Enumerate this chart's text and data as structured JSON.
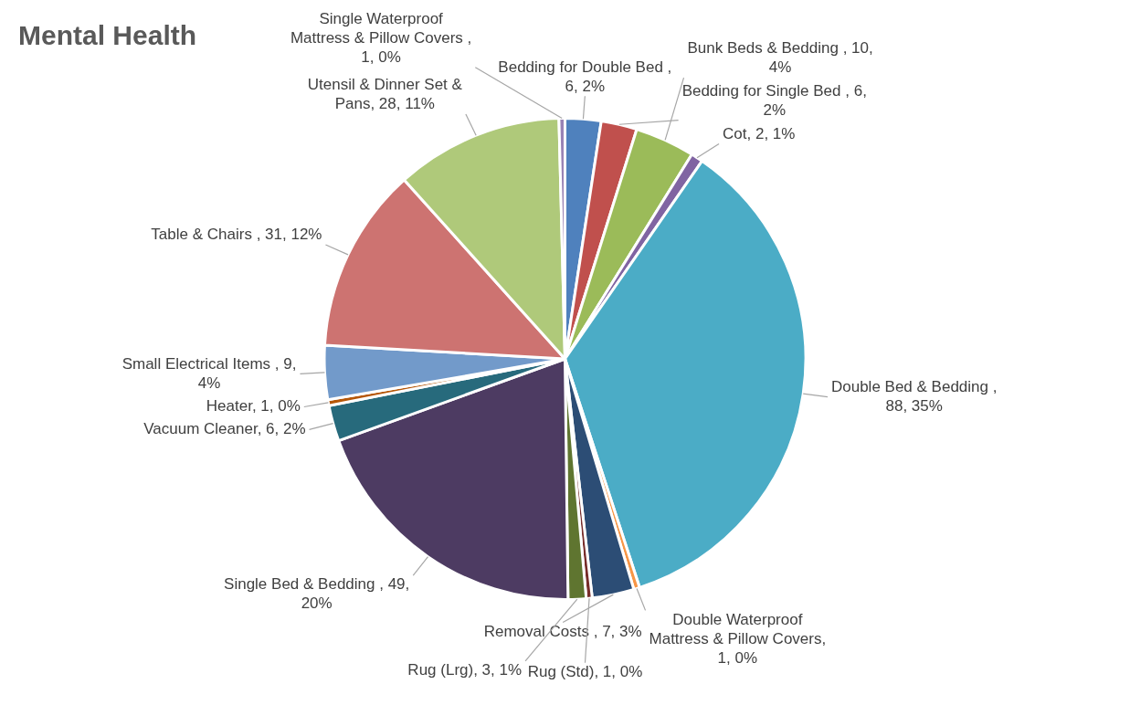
{
  "chart_data": {
    "type": "pie",
    "title": "Mental Health",
    "legend": false,
    "categories": [
      "Bedding for Double Bed ",
      "Bedding for Single Bed ",
      "Bunk Beds & Bedding ",
      "Cot",
      "Double Bed & Bedding ",
      "Double Waterproof Mattress & Pillow Covers",
      "Removal Costs ",
      "Rug (Std)",
      "Rug (Lrg)",
      "Single Bed & Bedding ",
      "Vacuum Cleaner",
      "Heater",
      "Small Electrical Items ",
      "Table & Chairs ",
      "Utensil & Dinner Set & Pans",
      "Single Waterproof Mattress & Pillow Covers "
    ],
    "values": [
      6,
      6,
      10,
      2,
      88,
      1,
      7,
      1,
      3,
      49,
      6,
      1,
      9,
      31,
      28,
      1
    ],
    "value_labels": [
      ", 6, 2%",
      ", 6, 2%",
      ", 10, 4%",
      ", 2, 1%",
      ", 88, 35%",
      ", 1, 0%",
      ", 7, 3%",
      ", 1, 0%",
      ", 3, 1%",
      ", 49, 20%",
      ", 6, 2%",
      ", 1, 0%",
      ", 9, 4%",
      ", 31, 12%",
      ", 28, 11%",
      ", 1, 0%"
    ],
    "colors": [
      "#4f81bd",
      "#c0504d",
      "#9bbb59",
      "#8064a2",
      "#4bacc6",
      "#f79646",
      "#2c4d75",
      "#772c2a",
      "#5f7530",
      "#4d3b62",
      "#276a7c",
      "#b65708",
      "#729aca",
      "#cd7371",
      "#afc97a",
      "#9983b5"
    ]
  }
}
